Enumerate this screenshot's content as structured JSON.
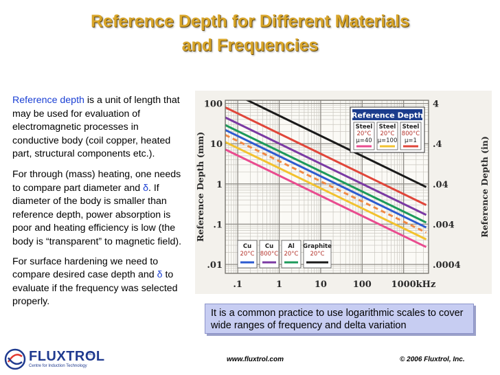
{
  "slide": {
    "title_line1": "Reference Depth for Different Materials",
    "title_line2": "and Frequencies"
  },
  "text": {
    "p1_term": "Reference depth",
    "p1_rest": " is a unit of length that may be used for evaluation of electromagnetic processes in conductive body (coil copper, heated part, structural components etc.).",
    "p2_a": "For through (mass) heating, one needs to compare part diameter and ",
    "p2_delta": "δ",
    "p2_b": ". If diameter of the body is smaller than reference depth, power absorption is poor and heating efficiency is low (the body is “transparent” to magnetic field).",
    "p3_a": "For surface hardening we need to compare desired case depth and ",
    "p3_delta": "δ",
    "p3_b": " to evaluate if the frequency was selected properly."
  },
  "callout": "It is a common practice to use logarithmic scales to cover wide ranges of  frequency and delta variation",
  "footer": {
    "url": "www.fluxtrol.com",
    "copyright": "© 2006 Fluxtrol, Inc."
  },
  "logo": {
    "name": "FLUXTROL",
    "tagline": "Centre for Induction Technology",
    "inc": "Inc."
  },
  "chart_data": {
    "type": "line",
    "title": "Reference Depth",
    "xlabel": "kHz",
    "ylabel": "Reference Depth (mm)",
    "ylabel_right": "Reference Depth (in)",
    "x_scale": "log",
    "y_scale": "log",
    "xlim": [
      0.05,
      4000
    ],
    "ylim": [
      0.006,
      120
    ],
    "x_ticks": [
      0.1,
      1,
      10,
      100,
      1000
    ],
    "x_tick_labels": [
      ".1",
      "1",
      "10",
      "100",
      "1000"
    ],
    "x_unit_label": "kHz",
    "y_ticks": [
      0.01,
      0.1,
      1,
      10,
      100
    ],
    "y_tick_labels": [
      ".01",
      ".1",
      "1",
      "10",
      "100"
    ],
    "y2_tick_labels": [
      ".0004",
      ".004",
      ".04",
      ".4",
      "4"
    ],
    "grid": true,
    "legend_top": {
      "heading": "Reference Depth",
      "entries": [
        {
          "line1": "Steel",
          "line2": "20°C",
          "line3": "µ=40",
          "color": "#e94c8f"
        },
        {
          "line1": "Steel",
          "line2": "20°C",
          "line3": "µ=100",
          "color": "#f2c230"
        },
        {
          "line1": "Steel",
          "line2": "800°C",
          "line3": "µ=1",
          "color": "#e0463a"
        }
      ]
    },
    "legend_bottom": {
      "entries": [
        {
          "line1": "Cu",
          "line2": "20°C",
          "color": "#2d5bd0"
        },
        {
          "line1": "Cu",
          "line2": "800°C",
          "color": "#7b3aa3"
        },
        {
          "line1": "Al",
          "line2": "20°C",
          "color": "#1d9a5b"
        },
        {
          "line1": "Graphite",
          "line2": "20°C",
          "color": "#1a1a1a"
        }
      ]
    },
    "series": [
      {
        "color": "#1a1a1a",
        "dash": false,
        "x": [
          0.05,
          3500
        ],
        "y": [
          222,
          0.84
        ]
      },
      {
        "color": "#e0463a",
        "dash": false,
        "x": [
          0.05,
          3500
        ],
        "y": [
          80,
          0.3
        ]
      },
      {
        "color": "#7b3aa3",
        "dash": false,
        "x": [
          0.05,
          3500
        ],
        "y": [
          45,
          0.17
        ]
      },
      {
        "color": "#1d9a5b",
        "dash": false,
        "x": [
          0.05,
          3500
        ],
        "y": [
          29,
          0.11
        ]
      },
      {
        "color": "#2d5bd0",
        "dash": false,
        "x": [
          0.05,
          3500
        ],
        "y": [
          22,
          0.083
        ]
      },
      {
        "color": "#f08a45",
        "dash": true,
        "x": [
          0.05,
          3500
        ],
        "y": [
          16.5,
          0.062
        ]
      },
      {
        "color": "#f2c230",
        "dash": false,
        "x": [
          0.05,
          3500
        ],
        "y": [
          11,
          0.042
        ]
      },
      {
        "color": "#e94c8f",
        "dash": false,
        "x": [
          0.05,
          3500
        ],
        "y": [
          7.2,
          0.027
        ]
      }
    ]
  }
}
